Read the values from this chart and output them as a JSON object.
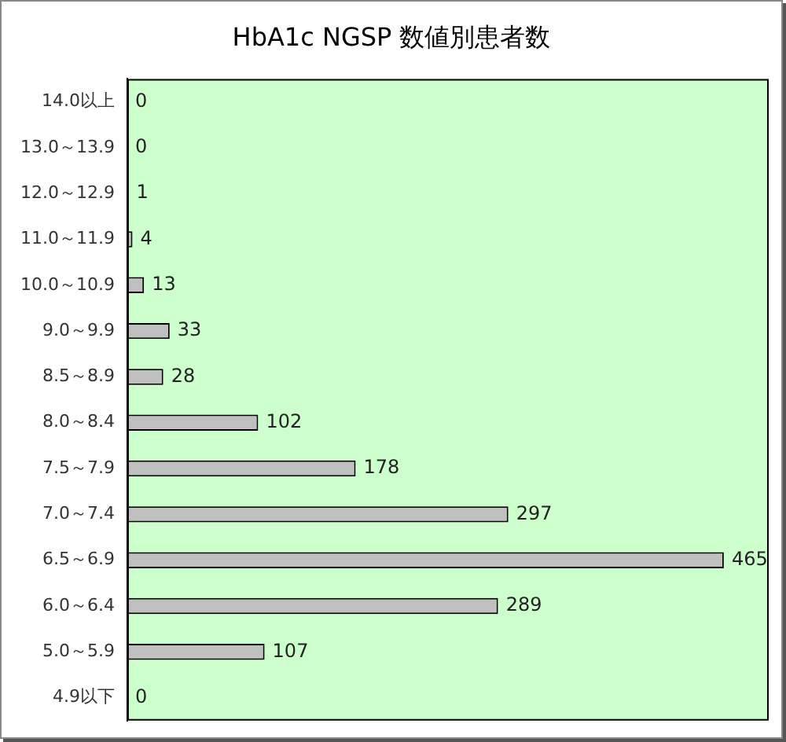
{
  "chart_data": {
    "type": "bar",
    "orientation": "horizontal",
    "title": "HbA1c NGSP 数値別患者数",
    "categories": [
      "14.0以上",
      "13.0～13.9",
      "12.0～12.9",
      "11.0～11.9",
      "10.0～10.9",
      "9.0～9.9",
      "8.5～8.9",
      "8.0～8.4",
      "7.5～7.9",
      "7.0～7.4",
      "6.5～6.9",
      "6.0～6.4",
      "5.0～5.9",
      "4.9以下"
    ],
    "values": [
      0,
      0,
      1,
      4,
      13,
      33,
      28,
      102,
      178,
      297,
      465,
      289,
      107,
      0
    ],
    "color": "#c0c0c0",
    "data_labels": true,
    "grid": false,
    "legend": false
  }
}
